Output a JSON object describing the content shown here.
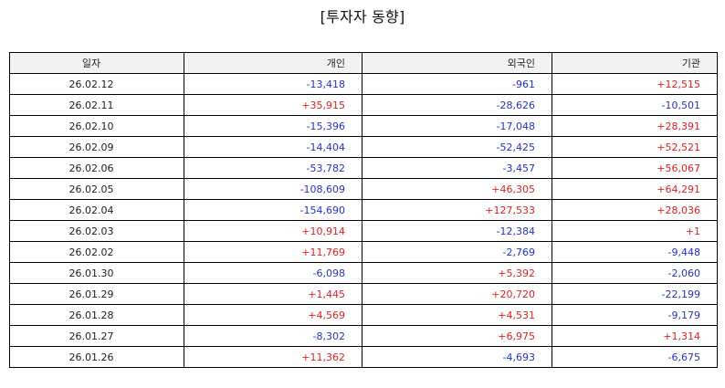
{
  "title": "[투자자 동향]",
  "colors": {
    "positive": "#e02020",
    "negative": "#2233cc",
    "header_bg": "#f2f2f2"
  },
  "columns": [
    "일자",
    "개인",
    "외국인",
    "기관"
  ],
  "rows": [
    [
      "26.02.12",
      "-13,418",
      "-961",
      "+12,515"
    ],
    [
      "26.02.11",
      "+35,915",
      "-28,626",
      "-10,501"
    ],
    [
      "26.02.10",
      "-15,396",
      "-17,048",
      "+28,391"
    ],
    [
      "26.02.09",
      "-14,404",
      "-52,425",
      "+52,521"
    ],
    [
      "26.02.06",
      "-53,782",
      "-3,457",
      "+56,067"
    ],
    [
      "26.02.05",
      "-108,609",
      "+46,305",
      "+64,291"
    ],
    [
      "26.02.04",
      "-154,690",
      "+127,533",
      "+28,036"
    ],
    [
      "26.02.03",
      "+10,914",
      "-12,384",
      "+1"
    ],
    [
      "26.02.02",
      "+11,769",
      "-2,769",
      "-9,448"
    ],
    [
      "26.01.30",
      "-6,098",
      "+5,392",
      "-2,060"
    ],
    [
      "26.01.29",
      "+1,445",
      "+20,720",
      "-22,199"
    ],
    [
      "26.01.28",
      "+4,569",
      "+4,531",
      "-9,179"
    ],
    [
      "26.01.27",
      "-8,302",
      "+6,975",
      "+1,314"
    ],
    [
      "26.01.26",
      "+11,362",
      "-4,693",
      "-6,675"
    ]
  ]
}
